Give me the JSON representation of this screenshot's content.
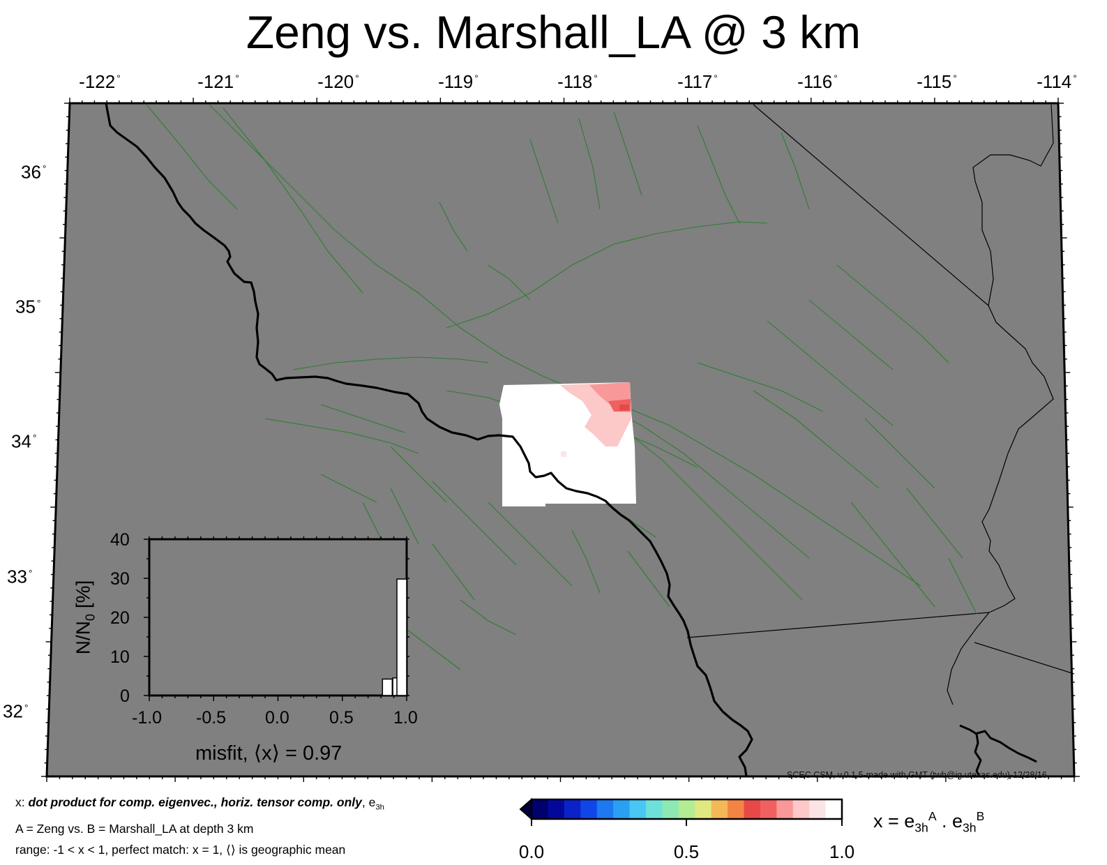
{
  "title": "Zeng vs. Marshall_LA @ 3 km",
  "map": {
    "longitude_ticks": [
      "-122",
      "-121",
      "-120",
      "-119",
      "-118",
      "-117",
      "-116",
      "-115",
      "-114"
    ],
    "latitude_ticks": [
      "36",
      "35",
      "34",
      "33",
      "32"
    ],
    "degree_symbol": "°",
    "background_color": "#808080",
    "fault_color": "#2e7d2e",
    "coastline_color": "#000000",
    "credit": "SCEC CSM, v.0.1.5-made with GMT (twb@ig.utexas.edu)-12/28/16"
  },
  "inset": {
    "y_ticks": [
      "0",
      "10",
      "20",
      "30",
      "40"
    ],
    "x_ticks": [
      "-1.0",
      "-0.5",
      "0.0",
      "0.5",
      "1.0"
    ],
    "ylabel_main": "N/N",
    "ylabel_sub": "0",
    "ylabel_unit": " [%]",
    "misfit_label": "misfit, ⟨x⟩ = 0.97",
    "bars": [
      {
        "x_center": 0.85,
        "value": 4.2
      },
      {
        "x_center": 0.93,
        "value": 4.5
      },
      {
        "x_center": 1.0,
        "value": 29.8
      }
    ]
  },
  "notes": {
    "line1_prefix": "x: ",
    "line1_bold": "dot product for comp. eigenvec., horiz. tensor comp. only",
    "line1_suffix": ", e",
    "line1_sub": "3h",
    "line2": "A = Zeng vs.  B = Marshall_LA at depth 3 km",
    "line3": "range: -1 < x < 1, perfect match: x = 1, ⟨⟩ is geographic mean"
  },
  "colorbar": {
    "labels": [
      "0.0",
      "0.5",
      "1.0"
    ],
    "colors": [
      "#00006e",
      "#04089a",
      "#0a22c8",
      "#1046e8",
      "#1e78f0",
      "#2aa0f4",
      "#48c6f4",
      "#6ee0dc",
      "#8ee8b4",
      "#b4ec94",
      "#e0e880",
      "#f4b858",
      "#f48444",
      "#e84848",
      "#f06060",
      "#f89898",
      "#fcc8c8",
      "#fde4e4",
      "#ffffff"
    ],
    "eq_prefix": "x = e",
    "eq_sub1": "3h",
    "eq_sup1": "A",
    "eq_mid": " . e",
    "eq_sub2": "3h",
    "eq_sup2": "B"
  }
}
